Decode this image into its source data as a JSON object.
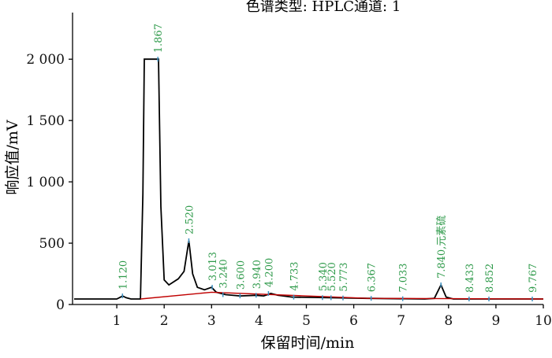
{
  "chart_data": {
    "type": "line",
    "title": "色谱类型: HPLC通道: 1",
    "x_label": "保留时间/min",
    "y_label": "响应值/mV",
    "xlim": [
      0,
      10
    ],
    "ylim": [
      0,
      2380
    ],
    "xticks": [
      1,
      2,
      3,
      4,
      5,
      6,
      7,
      8,
      9,
      10
    ],
    "yticks": [
      0,
      500,
      {
        "value": 1000,
        "label": "1 000"
      },
      {
        "value": 1500,
        "label": "1 500"
      },
      {
        "value": 2000,
        "label": "2 000"
      }
    ],
    "series": [
      {
        "color": "#000000",
        "x": [
          0.1,
          1.0,
          1.08,
          1.12,
          1.2,
          1.3,
          1.5,
          1.55,
          1.58,
          1.88,
          1.93,
          2.0,
          2.1,
          2.3,
          2.42,
          2.52,
          2.6,
          2.7,
          2.85,
          3.0,
          3.1,
          3.3,
          3.6,
          3.94,
          4.1,
          4.25,
          4.4,
          4.7,
          5.5,
          6.3,
          7.5,
          7.7,
          7.84,
          7.95,
          8.1,
          10.0
        ],
        "values": [
          45,
          45,
          60,
          70,
          55,
          45,
          45,
          900,
          2000,
          2000,
          800,
          200,
          160,
          210,
          270,
          520,
          250,
          140,
          120,
          140,
          100,
          80,
          70,
          75,
          70,
          90,
          75,
          60,
          55,
          50,
          45,
          50,
          160,
          60,
          45,
          45
        ]
      },
      {
        "color": "#c00000",
        "x": [
          1.5,
          3.0,
          6.3,
          10.0
        ],
        "values": [
          45,
          100,
          50,
          45
        ]
      }
    ],
    "peaks": [
      {
        "value": 1.12,
        "label": "1.120"
      },
      {
        "value": 1.867,
        "label": "1.867"
      },
      {
        "value": 2.52,
        "label": "2.520"
      },
      {
        "value": 3.013,
        "label": "3.013"
      },
      {
        "value": 3.24,
        "label": "3.240"
      },
      {
        "value": 3.6,
        "label": "3.600"
      },
      {
        "value": 3.94,
        "label": "3.940"
      },
      {
        "value": 4.2,
        "label": "4.200"
      },
      {
        "value": 4.733,
        "label": "4.733"
      },
      {
        "value": 5.34,
        "label": "5.340"
      },
      {
        "value": 5.52,
        "label": "5.520"
      },
      {
        "value": 5.773,
        "label": "5.773"
      },
      {
        "value": 6.367,
        "label": "6.367"
      },
      {
        "value": 7.033,
        "label": "7.033"
      },
      {
        "value": 7.84,
        "label": "7.840,元素硫"
      },
      {
        "value": 8.433,
        "label": "8.433"
      },
      {
        "value": 8.852,
        "label": "8.852"
      },
      {
        "value": 9.767,
        "label": "9.767"
      }
    ]
  }
}
